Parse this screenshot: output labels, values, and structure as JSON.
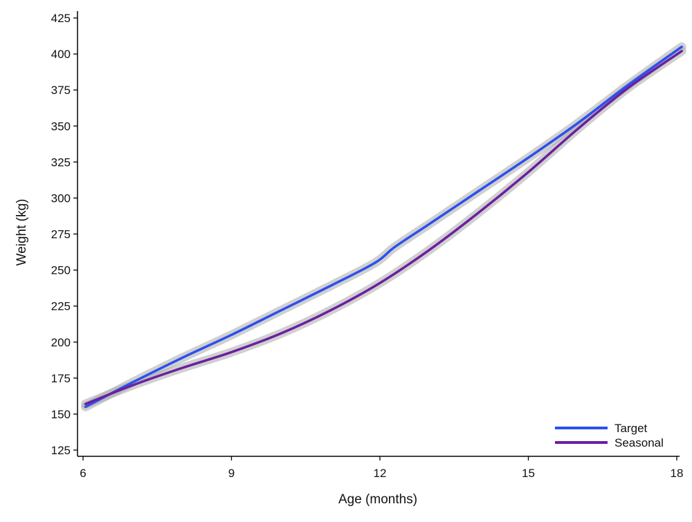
{
  "chart_data": {
    "type": "line",
    "title": "",
    "xlabel": "Age (months)",
    "ylabel": "Weight (kg)",
    "xlim": [
      6,
      18
    ],
    "ylim": [
      125,
      425
    ],
    "xticks": [
      6,
      9,
      12,
      15,
      18
    ],
    "yticks": [
      125,
      150,
      175,
      200,
      225,
      250,
      275,
      300,
      325,
      350,
      375,
      400,
      425
    ],
    "grid": false,
    "legend": {
      "placement": "bottom-right"
    },
    "series": [
      {
        "name": "Target",
        "color": "#2b4ff0",
        "confidence_band": true,
        "x": [
          6.05,
          7,
          8,
          9,
          10,
          11,
          11.9,
          12.3,
          13,
          14,
          15,
          16,
          17,
          18.1
        ],
        "y": [
          155,
          172,
          189,
          205,
          222,
          239,
          255,
          266,
          282,
          305,
          328,
          352,
          378,
          405
        ]
      },
      {
        "name": "Seasonal",
        "color": "#6a1fa0",
        "confidence_band": true,
        "x": [
          6.05,
          7,
          8,
          9,
          10,
          11,
          12,
          13,
          14,
          15,
          16,
          17,
          18.1
        ],
        "y": [
          157,
          170,
          182,
          193,
          206,
          222,
          241,
          264,
          290,
          318,
          348,
          376,
          402
        ]
      }
    ]
  }
}
